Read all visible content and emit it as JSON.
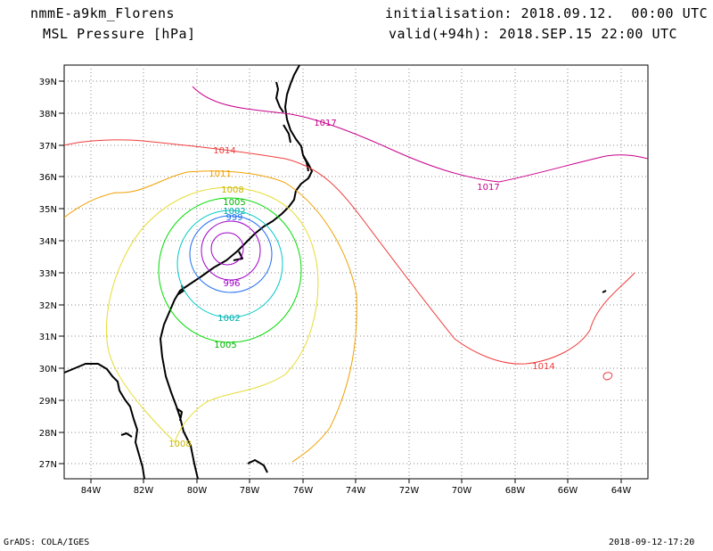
{
  "header": {
    "model": "nmmE-a9km_Florens",
    "field": "MSL Pressure [hPa]",
    "init": "initialisation: 2018.09.12.  00:00 UTC",
    "valid": "valid(+94h): 2018.SEP.15 22:00 UTC"
  },
  "footer": {
    "left": "GrADS: COLA/IGES",
    "right": "2018-09-12-17:20"
  },
  "axes": {
    "lat_labels": [
      "39N",
      "38N",
      "37N",
      "36N",
      "35N",
      "34N",
      "33N",
      "32N",
      "31N",
      "30N",
      "29N",
      "28N",
      "27N"
    ],
    "lon_labels": [
      "84W",
      "82W",
      "80W",
      "78W",
      "76W",
      "74W",
      "72W",
      "70W",
      "68W",
      "66W",
      "64W"
    ]
  },
  "contours": {
    "colors": {
      "996": "#a000c8",
      "999": "#1e6ef0",
      "1002": "#00c8c8",
      "1005": "#00dc00",
      "1008": "#e6dc32",
      "1011": "#f0a000",
      "1014": "#f03c3c",
      "1017": "#c8008c"
    },
    "labels": [
      {
        "text": "1017",
        "id": "c1017a"
      },
      {
        "text": "1017",
        "id": "c1017b"
      },
      {
        "text": "1014",
        "id": "c1014a"
      },
      {
        "text": "1014",
        "id": "c1014b"
      },
      {
        "text": "1011",
        "id": "c1011"
      },
      {
        "text": "1008",
        "id": "c1008a"
      },
      {
        "text": "1008",
        "id": "c1008b"
      },
      {
        "text": "1005",
        "id": "c1005a"
      },
      {
        "text": "1005",
        "id": "c1005b"
      },
      {
        "text": "1002",
        "id": "c1002a"
      },
      {
        "text": "1002",
        "id": "c1002b"
      },
      {
        "text": "999",
        "id": "c999"
      },
      {
        "text": "996",
        "id": "c996"
      }
    ]
  }
}
